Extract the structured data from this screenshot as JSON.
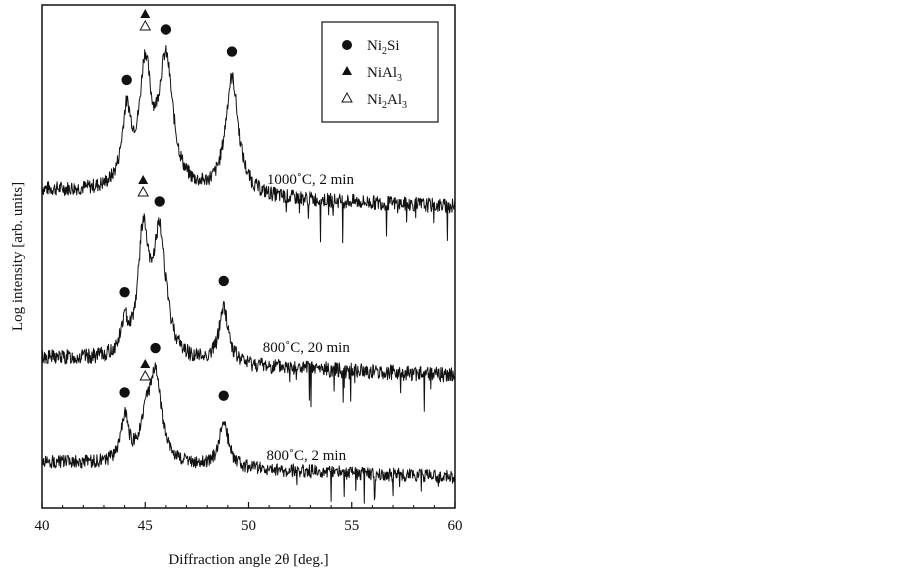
{
  "chart_data": {
    "type": "line",
    "xlabel": "Diffraction angle 2θ [deg.]",
    "ylabel": "Log intensity [arb. units]",
    "xlim": [
      40,
      60
    ],
    "x_ticks": [
      40,
      45,
      50,
      55,
      60
    ],
    "y_ticks_labeled": false,
    "grid": false,
    "legend_position": "top-right",
    "legend": [
      {
        "marker": "filled-circle",
        "formula": "Ni",
        "sub": "2",
        "rest": "Si",
        "text": "Ni2Si"
      },
      {
        "marker": "filled-triangle",
        "formula": "NiAl",
        "sub": "3",
        "rest": "",
        "text": "NiAl3"
      },
      {
        "marker": "open-triangle",
        "formula": "Ni",
        "sub": "2",
        "rest": "Al3",
        "rest_base": "Al",
        "rest_sub": "3",
        "text": "Ni2Al3"
      }
    ],
    "series": [
      {
        "name": "1000˚C, 2 min",
        "label_at": {
          "x": 53.0,
          "y": 0.52
        },
        "baseline": 0.0,
        "peaks": [
          {
            "x": 44.1,
            "y": 1.1,
            "phase": "Ni2Si"
          },
          {
            "x": 45.0,
            "y": 1.75,
            "phase": "NiAl3"
          },
          {
            "x": 45.0,
            "y": 1.75,
            "phase": "Ni2Al3"
          },
          {
            "x": 46.0,
            "y": 1.95,
            "phase": "Ni2Si"
          },
          {
            "x": 49.2,
            "y": 1.78,
            "phase": "Ni2Si"
          }
        ],
        "peak_width": [
          0.28,
          0.32,
          0.32,
          0.42,
          0.38
        ]
      },
      {
        "name": "800˚C, 20 min",
        "label_at": {
          "x": 52.8,
          "y": 0.22
        },
        "baseline": 0.0,
        "peaks": [
          {
            "x": 44.0,
            "y": 0.42,
            "phase": "Ni2Si"
          },
          {
            "x": 44.9,
            "y": 1.7,
            "phase": "NiAl3"
          },
          {
            "x": 44.9,
            "y": 1.7,
            "phase": "Ni2Al3"
          },
          {
            "x": 45.7,
            "y": 1.75,
            "phase": "Ni2Si"
          },
          {
            "x": 48.8,
            "y": 0.8,
            "phase": "Ni2Si"
          }
        ],
        "peak_width": [
          0.22,
          0.3,
          0.3,
          0.38,
          0.28
        ]
      },
      {
        "name": "800˚C, 2 min",
        "label_at": {
          "x": 52.8,
          "y": 0.18
        },
        "baseline": 0.0,
        "peaks": [
          {
            "x": 44.0,
            "y": 0.75,
            "phase": "Ni2Si"
          },
          {
            "x": 45.0,
            "y": 0.55,
            "phase": "NiAl3"
          },
          {
            "x": 45.0,
            "y": 0.55,
            "phase": "Ni2Al3"
          },
          {
            "x": 45.5,
            "y": 1.45,
            "phase": "Ni2Si"
          },
          {
            "x": 48.8,
            "y": 0.8,
            "phase": "Ni2Si"
          }
        ],
        "peak_width": [
          0.22,
          0.3,
          0.3,
          0.36,
          0.26
        ]
      }
    ]
  }
}
